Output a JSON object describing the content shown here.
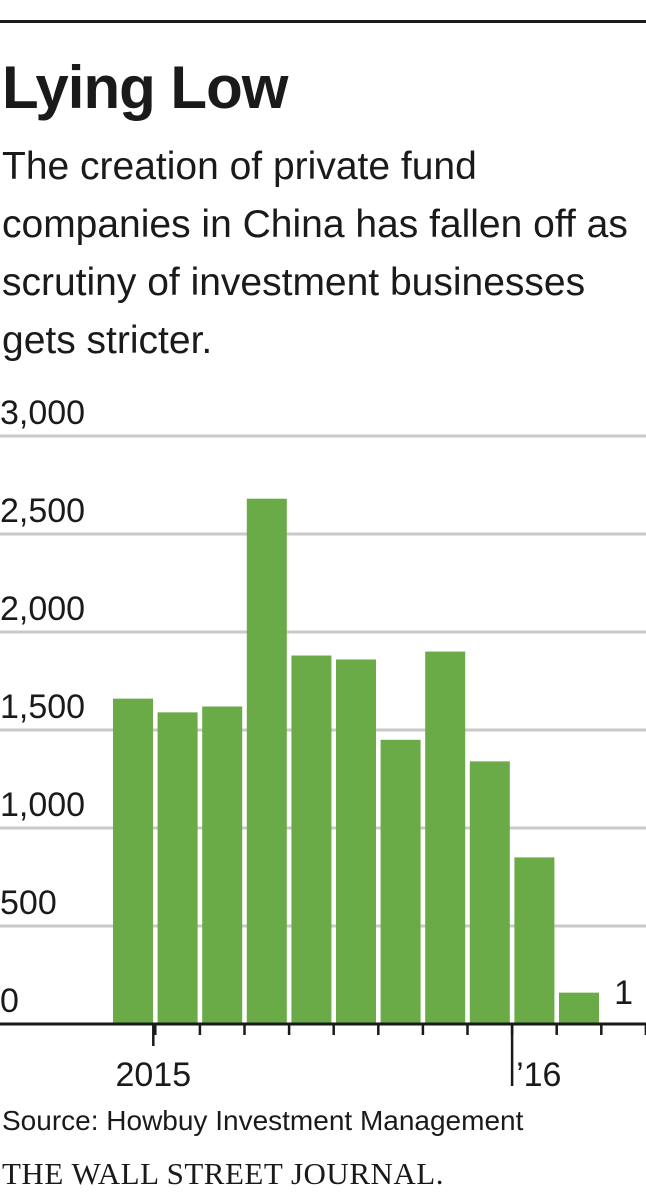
{
  "header": {
    "title": "Lying Low",
    "subtitle": "The creation of private fund companies in China has fallen off as scrutiny of investment businesses gets stricter."
  },
  "chart_data": {
    "type": "bar",
    "title": "Lying Low",
    "subtitle": "The creation of private fund companies in China has fallen off as scrutiny of investment businesses gets stricter.",
    "xlabel": "",
    "ylabel": "",
    "ylim": [
      0,
      3000
    ],
    "yticks": [
      0,
      500,
      1000,
      1500,
      2000,
      2500,
      3000
    ],
    "ytick_labels": [
      "0",
      "500",
      "1,000",
      "1,500",
      "2,000",
      "2,500",
      "3,000"
    ],
    "x_tick_labels": [
      {
        "label": "2015",
        "at_bar": 1
      },
      {
        "label": "’16",
        "at_bar": 9
      }
    ],
    "values": [
      1660,
      1590,
      1620,
      2680,
      1880,
      1860,
      1450,
      1900,
      1340,
      850,
      160,
      1
    ],
    "data_labels": [
      {
        "bar": 11,
        "text": "1"
      }
    ],
    "bar_color": "#6aaa47",
    "grid": true,
    "grid_color": "#c9c9c9"
  },
  "footer": {
    "source": "Source: Howbuy Investment Management",
    "brand": "THE WALL STREET JOURNAL."
  }
}
